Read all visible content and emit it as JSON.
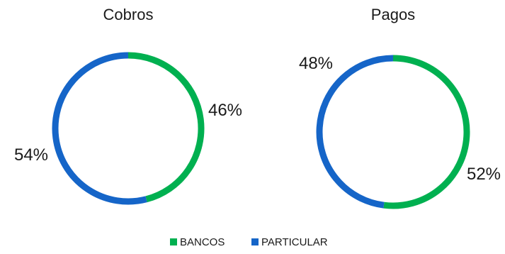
{
  "chart_data": [
    {
      "type": "pie",
      "title": "Cobros",
      "categories": [
        "BANCOS",
        "PARTICULAR"
      ],
      "values": [
        46,
        54
      ],
      "labels": [
        "46%",
        "54%"
      ]
    },
    {
      "type": "pie",
      "title": "Pagos",
      "categories": [
        "BANCOS",
        "PARTICULAR"
      ],
      "values": [
        52,
        48
      ],
      "labels": [
        "52%",
        "48%"
      ]
    }
  ],
  "legend": {
    "placement": "bottom",
    "items": [
      {
        "label": "BANCOS",
        "color": "#00b050"
      },
      {
        "label": "PARTICULAR",
        "color": "#1565c8"
      }
    ]
  },
  "colors": {
    "bancos": "#00b050",
    "particular": "#1565c8"
  }
}
